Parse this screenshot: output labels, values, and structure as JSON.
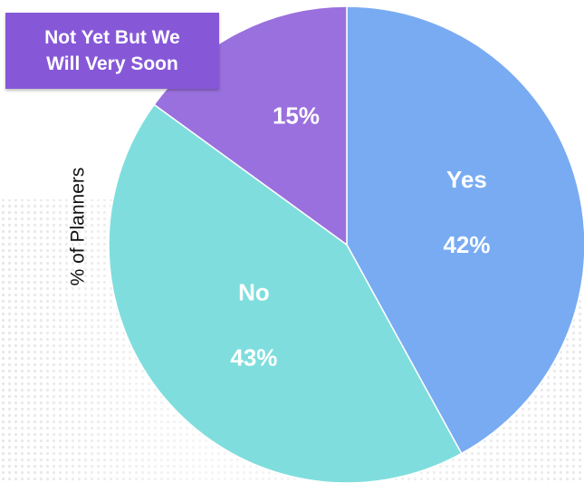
{
  "chart_data": {
    "type": "pie",
    "ylabel": "% of Planners",
    "slices": [
      {
        "label": "Yes",
        "value": 42,
        "value_label": "42%",
        "color": "#79abf2"
      },
      {
        "label": "No",
        "value": 43,
        "value_label": "43%",
        "color": "#7fdedd"
      },
      {
        "label": "",
        "value": 15,
        "value_label": "15%",
        "color": "#9a70de"
      }
    ],
    "callout": {
      "line1": "Not Yet But We",
      "line2": "Will Very Soon",
      "color": "#8658d8",
      "refers_to_value": "15%"
    },
    "start_angle": "12 o'clock",
    "direction": "clockwise",
    "background_pattern": "dot grid"
  }
}
